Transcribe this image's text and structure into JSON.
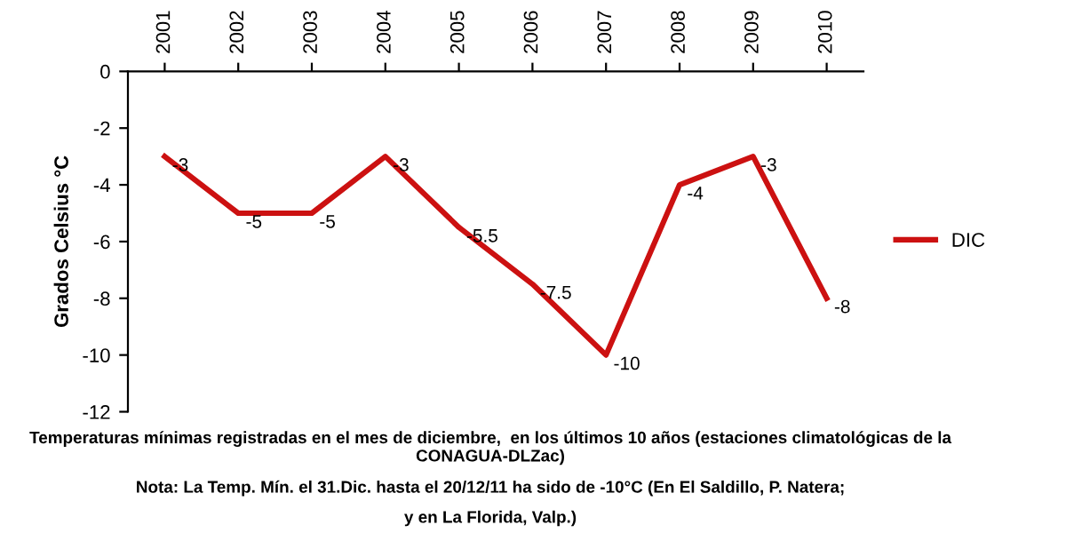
{
  "chart_data": {
    "type": "line",
    "categories": [
      "2001",
      "2002",
      "2003",
      "2004",
      "2005",
      "2006",
      "2007",
      "2008",
      "2009",
      "2010"
    ],
    "series": [
      {
        "name": "DIC",
        "color": "#cc1111",
        "values": [
          -3,
          -5,
          -5,
          -3,
          -5.5,
          -7.5,
          -10,
          -4,
          -3,
          -8
        ]
      }
    ],
    "ylabel": "Grados Celsius °C",
    "ylim": [
      -12,
      0
    ],
    "yticks": [
      -12,
      -10,
      -8,
      -6,
      -4,
      -2,
      0
    ],
    "data_labels": true,
    "legend": "right",
    "grid": false,
    "marker": "none",
    "line_style": "solid",
    "annotations": [
      "Temperaturas mínimas registradas en el mes de diciembre,  en los últimos 10 años (estaciones climatológicas de la CONAGUA-DLZac)",
      "Nota: La Temp. Mín. el 31.Dic. hasta el 20/12/11 ha sido de -10°C (En El Saldillo, P. Natera;",
      "y en La Florida, Valp.)"
    ]
  }
}
